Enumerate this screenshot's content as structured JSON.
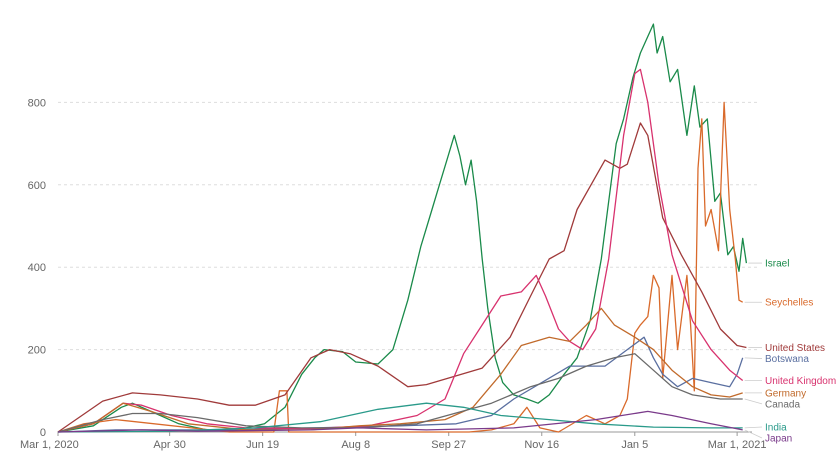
{
  "chart_data": {
    "type": "line",
    "title": "",
    "xlabel": "",
    "ylabel": "",
    "x_range": [
      "2020-03-01",
      "2021-03-09"
    ],
    "ylim": [
      0,
      1000
    ],
    "y_ticks": [
      0,
      200,
      400,
      600,
      800
    ],
    "x_ticks": [
      {
        "date": "2020-03-01",
        "label": "Mar 1, 2020"
      },
      {
        "date": "2020-04-30",
        "label": "Apr 30"
      },
      {
        "date": "2020-06-19",
        "label": "Jun 19"
      },
      {
        "date": "2020-08-08",
        "label": "Aug 8"
      },
      {
        "date": "2020-09-27",
        "label": "Sep 27"
      },
      {
        "date": "2020-11-16",
        "label": "Nov 16"
      },
      {
        "date": "2021-01-05",
        "label": "Jan 5"
      },
      {
        "date": "2021-03-01",
        "label": "Mar 1, 2021"
      }
    ],
    "grid": "horizontal dotted",
    "legend": "inline labels at line ends (right)",
    "series": [
      {
        "name": "Israel",
        "color": "#1a8a4a",
        "label_value": 410,
        "points": [
          [
            "2020-03-01",
            0
          ],
          [
            "2020-03-20",
            15
          ],
          [
            "2020-04-04",
            60
          ],
          [
            "2020-04-10",
            70
          ],
          [
            "2020-04-20",
            50
          ],
          [
            "2020-05-05",
            20
          ],
          [
            "2020-05-20",
            5
          ],
          [
            "2020-06-05",
            5
          ],
          [
            "2020-06-20",
            20
          ],
          [
            "2020-07-01",
            60
          ],
          [
            "2020-07-10",
            140
          ],
          [
            "2020-07-17",
            180
          ],
          [
            "2020-07-22",
            200
          ],
          [
            "2020-08-01",
            195
          ],
          [
            "2020-08-08",
            170
          ],
          [
            "2020-08-20",
            165
          ],
          [
            "2020-08-28",
            200
          ],
          [
            "2020-09-05",
            320
          ],
          [
            "2020-09-12",
            450
          ],
          [
            "2020-09-18",
            540
          ],
          [
            "2020-09-22",
            600
          ],
          [
            "2020-09-26",
            660
          ],
          [
            "2020-09-30",
            720
          ],
          [
            "2020-10-03",
            670
          ],
          [
            "2020-10-06",
            600
          ],
          [
            "2020-10-09",
            660
          ],
          [
            "2020-10-12",
            560
          ],
          [
            "2020-10-15",
            420
          ],
          [
            "2020-10-18",
            300
          ],
          [
            "2020-10-22",
            180
          ],
          [
            "2020-10-26",
            120
          ],
          [
            "2020-11-01",
            90
          ],
          [
            "2020-11-08",
            80
          ],
          [
            "2020-11-14",
            70
          ],
          [
            "2020-11-20",
            90
          ],
          [
            "2020-11-28",
            140
          ],
          [
            "2020-12-05",
            180
          ],
          [
            "2020-12-12",
            270
          ],
          [
            "2020-12-18",
            420
          ],
          [
            "2020-12-22",
            560
          ],
          [
            "2020-12-26",
            700
          ],
          [
            "2020-12-30",
            760
          ],
          [
            "2021-01-04",
            860
          ],
          [
            "2021-01-08",
            920
          ],
          [
            "2021-01-12",
            960
          ],
          [
            "2021-01-15",
            990
          ],
          [
            "2021-01-17",
            920
          ],
          [
            "2021-01-20",
            960
          ],
          [
            "2021-01-24",
            850
          ],
          [
            "2021-01-28",
            880
          ],
          [
            "2021-02-02",
            720
          ],
          [
            "2021-02-06",
            840
          ],
          [
            "2021-02-09",
            740
          ],
          [
            "2021-02-13",
            760
          ],
          [
            "2021-02-17",
            560
          ],
          [
            "2021-02-20",
            580
          ],
          [
            "2021-02-24",
            430
          ],
          [
            "2021-02-27",
            450
          ],
          [
            "2021-03-02",
            390
          ],
          [
            "2021-03-04",
            470
          ],
          [
            "2021-03-06",
            410
          ]
        ]
      },
      {
        "name": "Seychelles",
        "color": "#d96a2b",
        "label_value": 315,
        "points": [
          [
            "2020-03-01",
            0
          ],
          [
            "2020-03-15",
            20
          ],
          [
            "2020-04-01",
            30
          ],
          [
            "2020-06-01",
            0
          ],
          [
            "2020-06-25",
            0
          ],
          [
            "2020-06-28",
            100
          ],
          [
            "2020-07-02",
            100
          ],
          [
            "2020-07-03",
            0
          ],
          [
            "2020-09-20",
            0
          ],
          [
            "2020-10-08",
            0
          ],
          [
            "2020-10-20",
            5
          ],
          [
            "2020-11-01",
            20
          ],
          [
            "2020-11-08",
            60
          ],
          [
            "2020-11-15",
            10
          ],
          [
            "2020-11-25",
            0
          ],
          [
            "2020-12-10",
            40
          ],
          [
            "2020-12-20",
            20
          ],
          [
            "2020-12-28",
            40
          ],
          [
            "2021-01-01",
            80
          ],
          [
            "2021-01-05",
            240
          ],
          [
            "2021-01-08",
            260
          ],
          [
            "2021-01-12",
            280
          ],
          [
            "2021-01-15",
            380
          ],
          [
            "2021-01-18",
            350
          ],
          [
            "2021-01-20",
            130
          ],
          [
            "2021-01-25",
            380
          ],
          [
            "2021-01-28",
            200
          ],
          [
            "2021-02-02",
            380
          ],
          [
            "2021-02-04",
            260
          ],
          [
            "2021-02-06",
            100
          ],
          [
            "2021-02-08",
            640
          ],
          [
            "2021-02-10",
            760
          ],
          [
            "2021-02-12",
            500
          ],
          [
            "2021-02-15",
            540
          ],
          [
            "2021-02-19",
            440
          ],
          [
            "2021-02-22",
            800
          ],
          [
            "2021-02-25",
            540
          ],
          [
            "2021-02-28",
            420
          ],
          [
            "2021-03-02",
            320
          ],
          [
            "2021-03-04",
            315
          ]
        ]
      },
      {
        "name": "United States",
        "color": "#a03a3a",
        "label_value": 205,
        "points": [
          [
            "2020-03-01",
            0
          ],
          [
            "2020-03-25",
            75
          ],
          [
            "2020-04-10",
            95
          ],
          [
            "2020-04-25",
            90
          ],
          [
            "2020-05-15",
            80
          ],
          [
            "2020-06-01",
            65
          ],
          [
            "2020-06-15",
            65
          ],
          [
            "2020-07-01",
            90
          ],
          [
            "2020-07-15",
            180
          ],
          [
            "2020-07-25",
            200
          ],
          [
            "2020-08-05",
            190
          ],
          [
            "2020-08-20",
            160
          ],
          [
            "2020-09-05",
            110
          ],
          [
            "2020-09-15",
            115
          ],
          [
            "2020-09-30",
            135
          ],
          [
            "2020-10-15",
            155
          ],
          [
            "2020-10-30",
            230
          ],
          [
            "2020-11-10",
            330
          ],
          [
            "2020-11-20",
            420
          ],
          [
            "2020-11-28",
            440
          ],
          [
            "2020-12-05",
            540
          ],
          [
            "2020-12-15",
            620
          ],
          [
            "2020-12-20",
            660
          ],
          [
            "2020-12-28",
            640
          ],
          [
            "2021-01-01",
            650
          ],
          [
            "2021-01-08",
            750
          ],
          [
            "2021-01-12",
            720
          ],
          [
            "2021-01-20",
            520
          ],
          [
            "2021-01-30",
            430
          ],
          [
            "2021-02-10",
            340
          ],
          [
            "2021-02-20",
            250
          ],
          [
            "2021-03-01",
            210
          ],
          [
            "2021-03-06",
            205
          ]
        ]
      },
      {
        "name": "Botswana",
        "color": "#5a6fa0",
        "label_value": 180,
        "points": [
          [
            "2020-03-01",
            0
          ],
          [
            "2020-04-01",
            5
          ],
          [
            "2020-06-01",
            5
          ],
          [
            "2020-09-01",
            15
          ],
          [
            "2020-10-01",
            20
          ],
          [
            "2020-10-20",
            40
          ],
          [
            "2020-11-01",
            80
          ],
          [
            "2020-12-01",
            160
          ],
          [
            "2020-12-20",
            160
          ],
          [
            "2021-01-01",
            200
          ],
          [
            "2021-01-10",
            230
          ],
          [
            "2021-01-15",
            180
          ],
          [
            "2021-01-20",
            140
          ],
          [
            "2021-01-28",
            110
          ],
          [
            "2021-02-05",
            130
          ],
          [
            "2021-02-15",
            120
          ],
          [
            "2021-02-25",
            110
          ],
          [
            "2021-03-01",
            140
          ],
          [
            "2021-03-04",
            180
          ]
        ]
      },
      {
        "name": "United Kingdom",
        "color": "#d8326e",
        "label_value": 125,
        "points": [
          [
            "2020-03-01",
            0
          ],
          [
            "2020-03-20",
            20
          ],
          [
            "2020-04-05",
            70
          ],
          [
            "2020-04-15",
            65
          ],
          [
            "2020-05-01",
            40
          ],
          [
            "2020-05-20",
            20
          ],
          [
            "2020-06-10",
            10
          ],
          [
            "2020-07-15",
            8
          ],
          [
            "2020-08-15",
            15
          ],
          [
            "2020-09-10",
            40
          ],
          [
            "2020-09-25",
            80
          ],
          [
            "2020-10-05",
            190
          ],
          [
            "2020-10-15",
            260
          ],
          [
            "2020-10-25",
            330
          ],
          [
            "2020-11-05",
            340
          ],
          [
            "2020-11-13",
            380
          ],
          [
            "2020-11-18",
            330
          ],
          [
            "2020-11-25",
            250
          ],
          [
            "2020-12-01",
            220
          ],
          [
            "2020-12-08",
            200
          ],
          [
            "2020-12-15",
            250
          ],
          [
            "2020-12-22",
            420
          ],
          [
            "2020-12-30",
            720
          ],
          [
            "2021-01-05",
            870
          ],
          [
            "2021-01-08",
            880
          ],
          [
            "2021-01-12",
            800
          ],
          [
            "2021-01-18",
            600
          ],
          [
            "2021-01-25",
            430
          ],
          [
            "2021-02-05",
            270
          ],
          [
            "2021-02-15",
            200
          ],
          [
            "2021-02-25",
            150
          ],
          [
            "2021-03-04",
            125
          ]
        ]
      },
      {
        "name": "Germany",
        "color": "#c16a2b",
        "label_value": 95,
        "points": [
          [
            "2020-03-01",
            0
          ],
          [
            "2020-03-20",
            20
          ],
          [
            "2020-04-05",
            70
          ],
          [
            "2020-04-20",
            50
          ],
          [
            "2020-05-10",
            20
          ],
          [
            "2020-06-10",
            5
          ],
          [
            "2020-07-15",
            5
          ],
          [
            "2020-08-10",
            15
          ],
          [
            "2020-09-01",
            20
          ],
          [
            "2020-09-25",
            30
          ],
          [
            "2020-10-10",
            60
          ],
          [
            "2020-10-25",
            140
          ],
          [
            "2020-11-05",
            210
          ],
          [
            "2020-11-20",
            230
          ],
          [
            "2020-12-01",
            220
          ],
          [
            "2020-12-10",
            260
          ],
          [
            "2020-12-18",
            300
          ],
          [
            "2020-12-25",
            260
          ],
          [
            "2021-01-05",
            230
          ],
          [
            "2021-01-15",
            200
          ],
          [
            "2021-01-25",
            150
          ],
          [
            "2021-02-05",
            110
          ],
          [
            "2021-02-15",
            90
          ],
          [
            "2021-02-25",
            85
          ],
          [
            "2021-03-04",
            95
          ]
        ]
      },
      {
        "name": "Canada",
        "color": "#6a6a6a",
        "label_value": 80,
        "points": [
          [
            "2020-03-01",
            0
          ],
          [
            "2020-03-25",
            30
          ],
          [
            "2020-04-10",
            45
          ],
          [
            "2020-04-25",
            45
          ],
          [
            "2020-05-15",
            35
          ],
          [
            "2020-06-10",
            15
          ],
          [
            "2020-07-10",
            10
          ],
          [
            "2020-08-10",
            10
          ],
          [
            "2020-09-10",
            20
          ],
          [
            "2020-09-30",
            45
          ],
          [
            "2020-10-20",
            70
          ],
          [
            "2020-11-10",
            110
          ],
          [
            "2020-11-25",
            130
          ],
          [
            "2020-12-10",
            160
          ],
          [
            "2020-12-25",
            180
          ],
          [
            "2021-01-05",
            190
          ],
          [
            "2021-01-15",
            150
          ],
          [
            "2021-01-25",
            110
          ],
          [
            "2021-02-05",
            90
          ],
          [
            "2021-02-20",
            80
          ],
          [
            "2021-03-04",
            80
          ]
        ]
      },
      {
        "name": "India",
        "color": "#2a9a8a",
        "label_value": 10,
        "points": [
          [
            "2020-03-01",
            0
          ],
          [
            "2020-05-01",
            2
          ],
          [
            "2020-06-15",
            10
          ],
          [
            "2020-07-20",
            25
          ],
          [
            "2020-08-20",
            55
          ],
          [
            "2020-09-15",
            70
          ],
          [
            "2020-10-05",
            60
          ],
          [
            "2020-10-25",
            40
          ],
          [
            "2020-11-20",
            30
          ],
          [
            "2020-12-15",
            20
          ],
          [
            "2021-01-15",
            12
          ],
          [
            "2021-02-15",
            10
          ],
          [
            "2021-03-04",
            10
          ]
        ]
      },
      {
        "name": "Japan",
        "color": "#7a3a8a",
        "label_value": 5,
        "points": [
          [
            "2020-03-01",
            0
          ],
          [
            "2020-04-15",
            5
          ],
          [
            "2020-05-15",
            2
          ],
          [
            "2020-07-15",
            5
          ],
          [
            "2020-08-10",
            10
          ],
          [
            "2020-09-15",
            5
          ],
          [
            "2020-11-01",
            10
          ],
          [
            "2020-12-15",
            30
          ],
          [
            "2021-01-12",
            50
          ],
          [
            "2021-01-25",
            40
          ],
          [
            "2021-02-15",
            20
          ],
          [
            "2021-03-04",
            5
          ]
        ]
      }
    ]
  }
}
